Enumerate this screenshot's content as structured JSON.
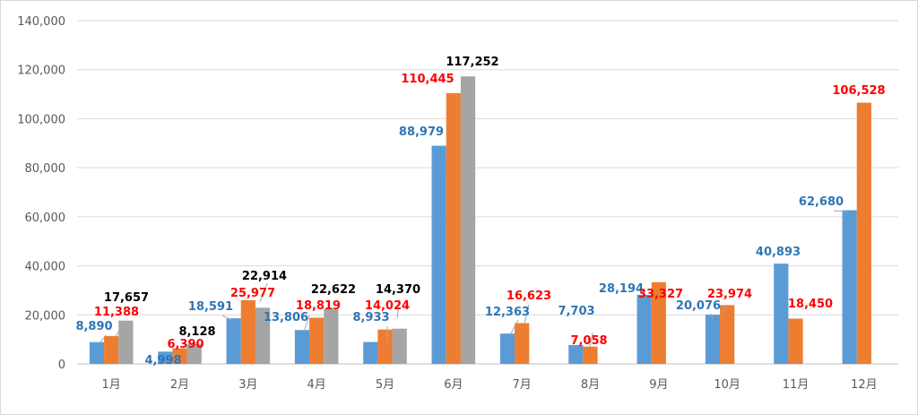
{
  "chart_data": {
    "type": "bar",
    "title": "",
    "xlabel": "",
    "ylabel": "",
    "ylim": [
      0,
      140000
    ],
    "yticks": [
      0,
      20000,
      40000,
      60000,
      80000,
      100000,
      120000,
      140000
    ],
    "ytick_labels": [
      "0",
      "20,000",
      "40,000",
      "60,000",
      "80,000",
      "100,000",
      "120,000",
      "140,000"
    ],
    "grid": true,
    "legend": "none",
    "categories": [
      "1月",
      "2月",
      "3月",
      "4月",
      "5月",
      "6月",
      "7月",
      "8月",
      "9月",
      "10月",
      "11月",
      "12月"
    ],
    "series": [
      {
        "color": "#5b9bd5",
        "label_color": "#2e75b6",
        "values": [
          8890,
          4998,
          18591,
          13806,
          8933,
          88979,
          12363,
          7703,
          28194,
          20076,
          40893,
          62680
        ],
        "labels": [
          "8,890",
          "4,998",
          "18,591",
          "13,806",
          "8,933",
          "88,979",
          "12,363",
          "7,703",
          "28,194",
          "20,076",
          "40,893",
          "62,680"
        ]
      },
      {
        "color": "#ed7d31",
        "label_color": "#ff0000",
        "values": [
          11388,
          6390,
          25977,
          18819,
          14024,
          110445,
          16623,
          7058,
          33327,
          23974,
          18450,
          106528
        ],
        "labels": [
          "11,388",
          "6,390",
          "25,977",
          "18,819",
          "14,024",
          "110,445",
          "16,623",
          "7,058",
          "33,327",
          "23,974",
          "18,450",
          "106,528"
        ]
      },
      {
        "color": "#a5a5a5",
        "label_color": "#000000",
        "values": [
          17657,
          8128,
          22914,
          22622,
          14370,
          117252,
          null,
          null,
          null,
          null,
          null,
          null
        ],
        "labels": [
          "17,657",
          "8,128",
          "22,914",
          "22,622",
          "14,370",
          "117,252",
          "",
          "",
          "",
          "",
          "",
          ""
        ]
      }
    ]
  }
}
